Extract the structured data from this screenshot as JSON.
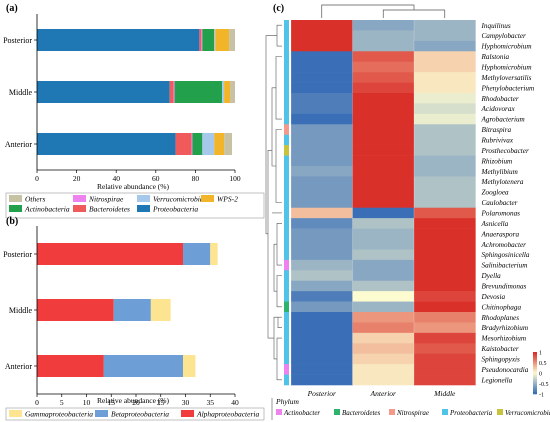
{
  "chart_data": [
    {
      "panel": "(a)",
      "type": "bar",
      "orientation": "horizontal",
      "stacked": true,
      "categories": [
        "Posterior",
        "Middle",
        "Anterior"
      ],
      "xlabel": "Relative abundance (%)",
      "xlim": [
        0,
        100
      ],
      "xticks": [
        "0",
        "20",
        "40",
        "60",
        "80",
        "100"
      ],
      "series": [
        {
          "name": "Proteobacteria",
          "color": "#1f77b4",
          "values": [
            82,
            67,
            70
          ]
        },
        {
          "name": "Bacteroidetes",
          "color": "#f05a5a",
          "values": [
            1,
            2,
            8
          ]
        },
        {
          "name": "Nitrospirae",
          "color": "#ee82ee",
          "values": [
            0.5,
            0.5,
            0.5
          ]
        },
        {
          "name": "Actinobacteria",
          "color": "#22a04b",
          "values": [
            6,
            24,
            5
          ]
        },
        {
          "name": "Verrucomicrobia",
          "color": "#a6c8ea",
          "values": [
            0.5,
            1,
            6
          ]
        },
        {
          "name": "WPS-2",
          "color": "#f2b52a",
          "values": [
            7,
            3,
            5
          ]
        },
        {
          "name": "Others",
          "color": "#c8c2a4",
          "values": [
            3,
            2.5,
            4
          ]
        }
      ],
      "legend_order": [
        "Others",
        "Nitrospirae",
        "Verrucomicrobia",
        "WPS-2",
        "Actinobacteria",
        "Bacteroidetes",
        "Proteobacteria"
      ]
    },
    {
      "panel": "(b)",
      "type": "bar",
      "orientation": "horizontal",
      "stacked": true,
      "categories": [
        "Posterior",
        "Middle",
        "Anterior"
      ],
      "xlabel": "Relative abundance (%)",
      "xlim": [
        0,
        40
      ],
      "xticks": [
        "0",
        "5",
        "10",
        "15",
        "20",
        "25",
        "30",
        "35",
        "40"
      ],
      "series": [
        {
          "name": "Alphaproteobacteria",
          "color": "#f03c3c",
          "values": [
            29.5,
            15.5,
            13.5
          ]
        },
        {
          "name": "Betaproteobacteria",
          "color": "#6d9fd6",
          "values": [
            5.5,
            7.5,
            16
          ]
        },
        {
          "name": "Gammaproteobacteria",
          "color": "#fde491",
          "values": [
            1.5,
            4,
            2.5
          ]
        }
      ],
      "legend_order": [
        "Gammaproteobacteria",
        "Betaproteobacteria",
        "Alphaproteobacteria"
      ]
    },
    {
      "panel": "(c)",
      "type": "heatmap",
      "columns": [
        "Posterior",
        "Anterior",
        "Middle"
      ],
      "rows": [
        "Inquilinus",
        "Campylobacter",
        "Hyphomicrobium",
        "Ralstonia",
        "Hyphomicrobium",
        "Methyloversatilis",
        "Phenylobacterium",
        "Rhodobacter",
        "Acidovorax",
        "Agrobacterium",
        "Bitraspira",
        "Rubrivivax",
        "Prosthecobacter",
        "Rhizobium",
        "Methylibium",
        "Methylotenera",
        "Zoogloea",
        "Caulobacter",
        "Polaromonas",
        "Asnicella",
        "Anaeraspora",
        "Achromobacter",
        "Sphingosinicella",
        "Salinibacterium",
        "Dyella",
        "Brevundimonas",
        "Devosia",
        "Chitinophaga",
        "Rhodoplanes",
        "Bradyrhizobium",
        "Mesorhizobium",
        "Kaistobacter",
        "Sphingopyxis",
        "Pseudonocardia",
        "Legionella"
      ],
      "row_phylum": [
        "Proteobacteria",
        "Proteobacteria",
        "Proteobacteria",
        "Proteobacteria",
        "Proteobacteria",
        "Proteobacteria",
        "Proteobacteria",
        "Proteobacteria",
        "Proteobacteria",
        "Proteobacteria",
        "Nitrospirae",
        "Proteobacteria",
        "Verrucomicrobia",
        "Proteobacteria",
        "Proteobacteria",
        "Proteobacteria",
        "Proteobacteria",
        "Proteobacteria",
        "Proteobacteria",
        "Proteobacteria",
        "Proteobacteria",
        "Proteobacteria",
        "Proteobacteria",
        "Actinobacter",
        "Proteobacteria",
        "Proteobacteria",
        "Proteobacteria",
        "Bacteroidetes",
        "Proteobacteria",
        "Proteobacteria",
        "Proteobacteria",
        "Proteobacteria",
        "Proteobacteria",
        "Actinobacter",
        "Proteobacteria"
      ],
      "values": [
        [
          1.1,
          -0.6,
          -0.5
        ],
        [
          1.1,
          -0.5,
          -0.5
        ],
        [
          1.1,
          -0.5,
          -0.6
        ],
        [
          -1.1,
          0.8,
          0.2
        ],
        [
          -1.0,
          0.7,
          0.2
        ],
        [
          -1.0,
          0.8,
          0.1
        ],
        [
          -1.0,
          0.9,
          0.1
        ],
        [
          -0.9,
          1.0,
          -0.1
        ],
        [
          -0.9,
          1.0,
          -0.2
        ],
        [
          -1.0,
          1.0,
          -0.1
        ],
        [
          -0.7,
          1.1,
          -0.4
        ],
        [
          -0.7,
          1.1,
          -0.4
        ],
        [
          -0.7,
          1.1,
          -0.4
        ],
        [
          -0.7,
          1.1,
          -0.5
        ],
        [
          -0.6,
          1.1,
          -0.5
        ],
        [
          -0.7,
          1.1,
          -0.4
        ],
        [
          -0.7,
          1.1,
          -0.4
        ],
        [
          -0.7,
          1.1,
          -0.4
        ],
        [
          0.3,
          -1.1,
          0.8
        ],
        [
          -0.8,
          -0.4,
          1.2
        ],
        [
          -0.7,
          -0.5,
          1.2
        ],
        [
          -0.7,
          -0.5,
          1.2
        ],
        [
          -0.7,
          -0.4,
          1.1
        ],
        [
          -0.5,
          -0.6,
          1.1
        ],
        [
          -0.4,
          -0.6,
          1.1
        ],
        [
          -0.6,
          -0.4,
          1.0
        ],
        [
          -0.9,
          0.0,
          0.9
        ],
        [
          -0.7,
          -0.5,
          1.1
        ],
        [
          -1.1,
          0.5,
          0.6
        ],
        [
          -1.1,
          0.6,
          0.5
        ],
        [
          -1.1,
          0.2,
          0.9
        ],
        [
          -1.1,
          0.3,
          0.8
        ],
        [
          -1.0,
          0.2,
          0.9
        ],
        [
          -1.0,
          0.1,
          0.9
        ],
        [
          -1.0,
          0.1,
          0.9
        ]
      ],
      "color_scale": {
        "min": -1,
        "max": 1,
        "low": "#3a6fb8",
        "mid": "#fdfbd0",
        "high": "#d9302a"
      },
      "colorbar_ticks": [
        "1",
        "0.5",
        "0",
        "-0.5",
        "-1"
      ],
      "phylum_legend_title": "Phylum",
      "phylum_legend": [
        {
          "name": "Actinobacter",
          "color": "#ee82ee"
        },
        {
          "name": "Bacteroidetes",
          "color": "#2db36a"
        },
        {
          "name": "Nitrospirae",
          "color": "#f59a8a"
        },
        {
          "name": "Proteobacteria",
          "color": "#4fc3e8"
        },
        {
          "name": "Verrucomicrobia",
          "color": "#c8c33a"
        }
      ]
    }
  ]
}
